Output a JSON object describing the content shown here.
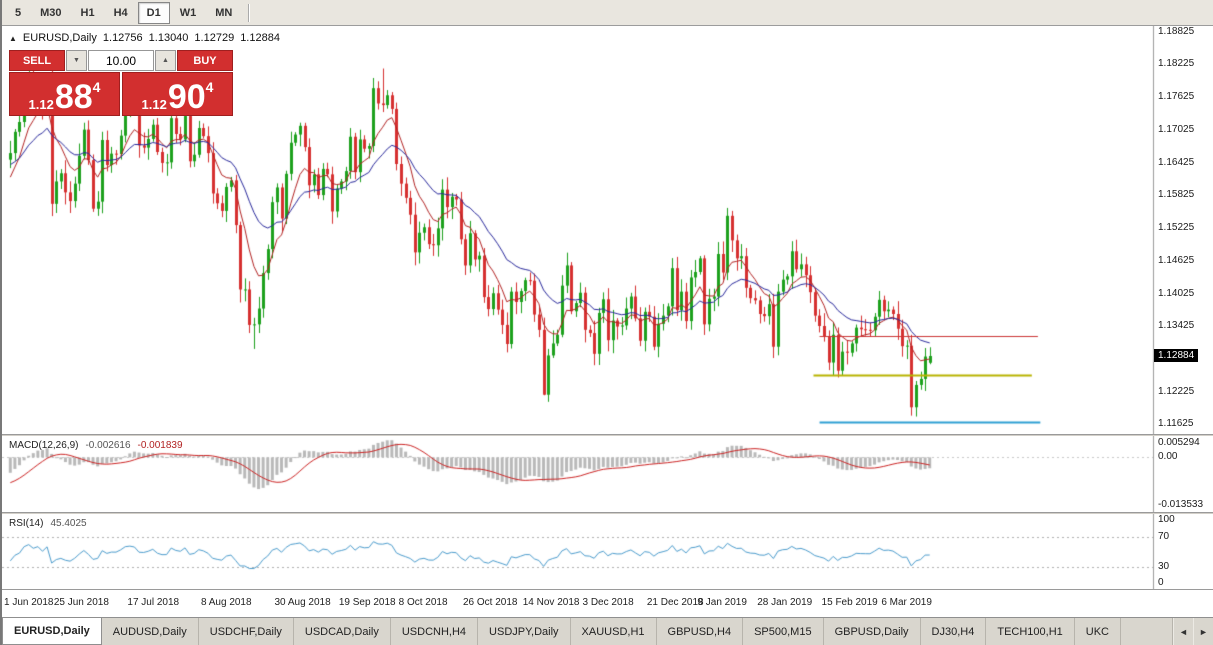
{
  "toolbar": {
    "timeframes": [
      {
        "label": "5"
      },
      {
        "label": "M30"
      },
      {
        "label": "H1"
      },
      {
        "label": "H4"
      },
      {
        "label": "D1",
        "active": true
      },
      {
        "label": "W1"
      },
      {
        "label": "MN"
      }
    ]
  },
  "chart_header": {
    "icon": "▲",
    "title": "EURUSD,Daily",
    "open": "1.12756",
    "high": "1.13040",
    "low": "1.12729",
    "close": "1.12884"
  },
  "trade_panel": {
    "sell_label": "SELL",
    "buy_label": "BUY",
    "volume": "10.00",
    "volume_down_icon": "▼",
    "volume_up_icon": "▲",
    "bid": {
      "prefix": "1.12",
      "big": "88",
      "sup": "4"
    },
    "ask": {
      "prefix": "1.12",
      "big": "90",
      "sup": "4"
    }
  },
  "chart_data": [
    {
      "type": "candlestick",
      "symbol": "EURUSD",
      "timeframe": "Daily",
      "y_range": [
        1.1145,
        1.1893
      ],
      "y_ticks": [
        "1.18825",
        "1.18225",
        "1.17625",
        "1.17025",
        "1.16425",
        "1.15825",
        "1.15225",
        "1.14625",
        "1.14025",
        "1.13425",
        "1.12825",
        "1.12225",
        "1.11625"
      ],
      "current_price": 1.12884,
      "current_price_label": "1.12884",
      "x_labels": [
        "1 Jun 2018",
        "25 Jun 2018",
        "17 Jul 2018",
        "8 Aug 2018",
        "30 Aug 2018",
        "19 Sep 2018",
        "8 Oct 2018",
        "26 Oct 2018",
        "14 Nov 2018",
        "3 Dec 2018",
        "21 Dec 2018",
        "9 Jan 2019",
        "28 Jan 2019",
        "15 Feb 2019",
        "6 Mar 2019"
      ],
      "x_label_indices": [
        0,
        16,
        32,
        48,
        64,
        78,
        91,
        105,
        118,
        131,
        145,
        156,
        169,
        183,
        196
      ],
      "warmup_closes": [
        1.1815,
        1.179,
        1.176,
        1.173,
        1.1705,
        1.168,
        1.165,
        1.1625,
        1.16,
        1.1575,
        1.155,
        1.153,
        1.1515,
        1.151,
        1.1535,
        1.156,
        1.1585,
        1.161,
        1.1635,
        1.165
      ],
      "closes": [
        1.166,
        1.1699,
        1.1717,
        1.1775,
        1.1798,
        1.1768,
        1.1785,
        1.1745,
        1.1791,
        1.1567,
        1.1608,
        1.1623,
        1.1588,
        1.1572,
        1.1604,
        1.1655,
        1.1703,
        1.1647,
        1.1558,
        1.1571,
        1.1684,
        1.1638,
        1.1659,
        1.1658,
        1.1692,
        1.1744,
        1.1754,
        1.1743,
        1.1674,
        1.167,
        1.1686,
        1.1712,
        1.1662,
        1.1642,
        1.1643,
        1.1724,
        1.1695,
        1.1685,
        1.1729,
        1.1645,
        1.1657,
        1.1706,
        1.1691,
        1.166,
        1.1586,
        1.1568,
        1.1554,
        1.1598,
        1.161,
        1.1528,
        1.141,
        1.141,
        1.1345,
        1.1346,
        1.1375,
        1.144,
        1.1484,
        1.157,
        1.1597,
        1.154,
        1.1622,
        1.1679,
        1.1694,
        1.171,
        1.1671,
        1.1601,
        1.1621,
        1.1583,
        1.1631,
        1.1621,
        1.1553,
        1.1595,
        1.1608,
        1.1627,
        1.169,
        1.1625,
        1.1685,
        1.1668,
        1.1673,
        1.1779,
        1.1751,
        1.1748,
        1.1766,
        1.1741,
        1.164,
        1.1604,
        1.1578,
        1.1547,
        1.1478,
        1.1514,
        1.1524,
        1.1493,
        1.1491,
        1.1522,
        1.1593,
        1.1561,
        1.158,
        1.1575,
        1.1502,
        1.1454,
        1.1513,
        1.1465,
        1.1472,
        1.1396,
        1.1374,
        1.1403,
        1.1373,
        1.1345,
        1.131,
        1.1406,
        1.1387,
        1.1407,
        1.1427,
        1.1426,
        1.1364,
        1.1336,
        1.1217,
        1.1289,
        1.1311,
        1.1327,
        1.1417,
        1.1454,
        1.137,
        1.1385,
        1.1404,
        1.1336,
        1.133,
        1.1292,
        1.1367,
        1.1392,
        1.1317,
        1.1353,
        1.1342,
        1.1344,
        1.1375,
        1.1397,
        1.1357,
        1.1316,
        1.1369,
        1.136,
        1.1305,
        1.1347,
        1.1362,
        1.1379,
        1.1449,
        1.1372,
        1.1406,
        1.1352,
        1.1432,
        1.1442,
        1.1467,
        1.1346,
        1.1393,
        1.1397,
        1.1475,
        1.1441,
        1.1545,
        1.15,
        1.1467,
        1.1471,
        1.1413,
        1.1394,
        1.139,
        1.1365,
        1.1361,
        1.1383,
        1.1305,
        1.1406,
        1.1428,
        1.1434,
        1.148,
        1.1447,
        1.1456,
        1.1436,
        1.1405,
        1.1362,
        1.1343,
        1.1324,
        1.1276,
        1.1327,
        1.1261,
        1.1296,
        1.1294,
        1.1311,
        1.134,
        1.1337,
        1.1336,
        1.1335,
        1.136,
        1.1391,
        1.137,
        1.1373,
        1.1365,
        1.1338,
        1.1306,
        1.1307,
        1.1194,
        1.1235,
        1.1246,
        1.1287,
        1.1288
      ],
      "overrides": {
        "53": {
          "low": 1.1301
        },
        "81": {
          "high": 1.1815
        },
        "116": {
          "low": 1.1216
        },
        "197": {
          "low": 1.1177
        },
        "200": {
          "open": 1.12756,
          "high": 1.1304,
          "low": 1.12729
        }
      },
      "hlines": [
        {
          "price": 1.1325,
          "color": "#cc3333",
          "width": 1,
          "x0": 0.674,
          "x1": 0.854
        },
        {
          "price": 1.1253,
          "color": "#b8b400",
          "width": 2,
          "x0": 0.669,
          "x1": 0.849
        },
        {
          "price": 1.1167,
          "color": "#2e9fd4",
          "width": 2,
          "x0": 0.674,
          "x1": 0.856
        }
      ],
      "ma_overlays": [
        {
          "period": 8,
          "color": "#b22222"
        },
        {
          "period": 21,
          "color": "#28289c"
        }
      ],
      "colors": {
        "up": "#1da11d",
        "down": "#d63030",
        "background": "#ffffff",
        "axis_line": "#9c9c9c"
      }
    },
    {
      "type": "macd",
      "label": "MACD(12,26,9)",
      "params": [
        12,
        26,
        9
      ],
      "value_main": "-0.002616",
      "value_signal": "-0.001839",
      "y_axis": [
        "0.005294",
        "0.00",
        "-0.013533"
      ],
      "hist_color": "#b9b9b9",
      "signal_color": "#cc2222",
      "derived_from": "closes"
    },
    {
      "type": "rsi",
      "label": "RSI(14)",
      "period": 14,
      "value": "45.4025",
      "y_axis": [
        "100",
        "70",
        "30",
        "0"
      ],
      "levels": [
        70,
        30
      ],
      "line_color": "#4b9ccd",
      "derived_from": "closes"
    }
  ],
  "tab_bar": {
    "tabs": [
      {
        "label": "EURUSD,Daily",
        "active": true
      },
      {
        "label": "AUDUSD,Daily"
      },
      {
        "label": "USDCHF,Daily"
      },
      {
        "label": "USDCAD,Daily"
      },
      {
        "label": "USDCNH,H4"
      },
      {
        "label": "USDJPY,Daily"
      },
      {
        "label": "XAUUSD,H1"
      },
      {
        "label": "GBPUSD,H4"
      },
      {
        "label": "SP500,M15"
      },
      {
        "label": "GBPUSD,Daily"
      },
      {
        "label": "DJ30,H4"
      },
      {
        "label": "TECH100,H1"
      },
      {
        "label": "UKC"
      }
    ],
    "scroll_left": "◄",
    "scroll_right": "►"
  }
}
